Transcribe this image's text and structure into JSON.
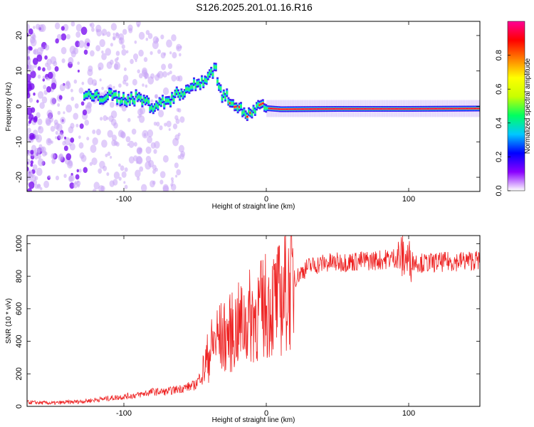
{
  "figure": {
    "title": "S126.2025.201.01.16.R16"
  },
  "chart_data": [
    {
      "type": "heatmap",
      "xlabel": "Height of straight line (km)",
      "ylabel": "Frequency (Hz)",
      "xlim": [
        -168,
        150
      ],
      "ylim": [
        -24,
        24
      ],
      "x_ticks": [
        -100,
        0,
        100
      ],
      "y_ticks": [
        -20,
        -10,
        0,
        10,
        20
      ],
      "colorbar": {
        "label": "Normalized spectral amplitude",
        "range": [
          0,
          1
        ],
        "ticks": [
          "0.0",
          "0.2",
          "0.4",
          "0.6",
          "0.8"
        ],
        "colors": [
          "#ffffff",
          "#8a00ff",
          "#0000ff",
          "#00c8ff",
          "#00ff60",
          "#c8ff00",
          "#ffff00",
          "#ff8000",
          "#ff0000",
          "#ff0096"
        ]
      },
      "ridge": [
        {
          "x": -125,
          "f": 3
        },
        {
          "x": -118,
          "f": 2.5
        },
        {
          "x": -110,
          "f": 3
        },
        {
          "x": -100,
          "f": 2
        },
        {
          "x": -90,
          "f": 2.5
        },
        {
          "x": -80,
          "f": 0
        },
        {
          "x": -70,
          "f": 1.5
        },
        {
          "x": -60,
          "f": 4
        },
        {
          "x": -50,
          "f": 6
        },
        {
          "x": -42,
          "f": 8
        },
        {
          "x": -36,
          "f": 11
        },
        {
          "x": -32,
          "f": 3.5
        },
        {
          "x": -25,
          "f": 2
        },
        {
          "x": -18,
          "f": -1
        },
        {
          "x": -12,
          "f": -2.5
        },
        {
          "x": -5,
          "f": 0
        },
        {
          "x": 0,
          "f": -0.5
        },
        {
          "x": 10,
          "f": -0.8
        },
        {
          "x": 50,
          "f": -0.7
        },
        {
          "x": 100,
          "f": -0.7
        },
        {
          "x": 150,
          "f": -0.6
        }
      ]
    },
    {
      "type": "line",
      "xlabel": "Height of straight line (km)",
      "ylabel": "SNR (10 * v/v)",
      "xlim": [
        -168,
        150
      ],
      "ylim": [
        0,
        1050
      ],
      "x_ticks": [
        -100,
        0,
        100
      ],
      "y_ticks": [
        0,
        200,
        400,
        600,
        800,
        1000
      ],
      "color": "#ee2222",
      "series": [
        {
          "x": -168,
          "y": 25
        },
        {
          "x": -150,
          "y": 20
        },
        {
          "x": -130,
          "y": 30
        },
        {
          "x": -110,
          "y": 50
        },
        {
          "x": -90,
          "y": 70
        },
        {
          "x": -80,
          "y": 90
        },
        {
          "x": -70,
          "y": 90
        },
        {
          "x": -60,
          "y": 110
        },
        {
          "x": -50,
          "y": 130
        },
        {
          "x": -45,
          "y": 200
        },
        {
          "x": -40,
          "y": 330
        },
        {
          "x": -35,
          "y": 420
        },
        {
          "x": -30,
          "y": 420
        },
        {
          "x": -25,
          "y": 450
        },
        {
          "x": -20,
          "y": 490
        },
        {
          "x": -15,
          "y": 520
        },
        {
          "x": -10,
          "y": 560
        },
        {
          "x": -5,
          "y": 580
        },
        {
          "x": 0,
          "y": 620
        },
        {
          "x": 5,
          "y": 640
        },
        {
          "x": 10,
          "y": 660
        },
        {
          "x": 15,
          "y": 720
        },
        {
          "x": 20,
          "y": 780
        },
        {
          "x": 25,
          "y": 830
        },
        {
          "x": 30,
          "y": 860
        },
        {
          "x": 40,
          "y": 880
        },
        {
          "x": 60,
          "y": 890
        },
        {
          "x": 80,
          "y": 900
        },
        {
          "x": 95,
          "y": 920
        },
        {
          "x": 100,
          "y": 900
        },
        {
          "x": 110,
          "y": 880
        },
        {
          "x": 130,
          "y": 890
        },
        {
          "x": 150,
          "y": 900
        }
      ]
    }
  ]
}
